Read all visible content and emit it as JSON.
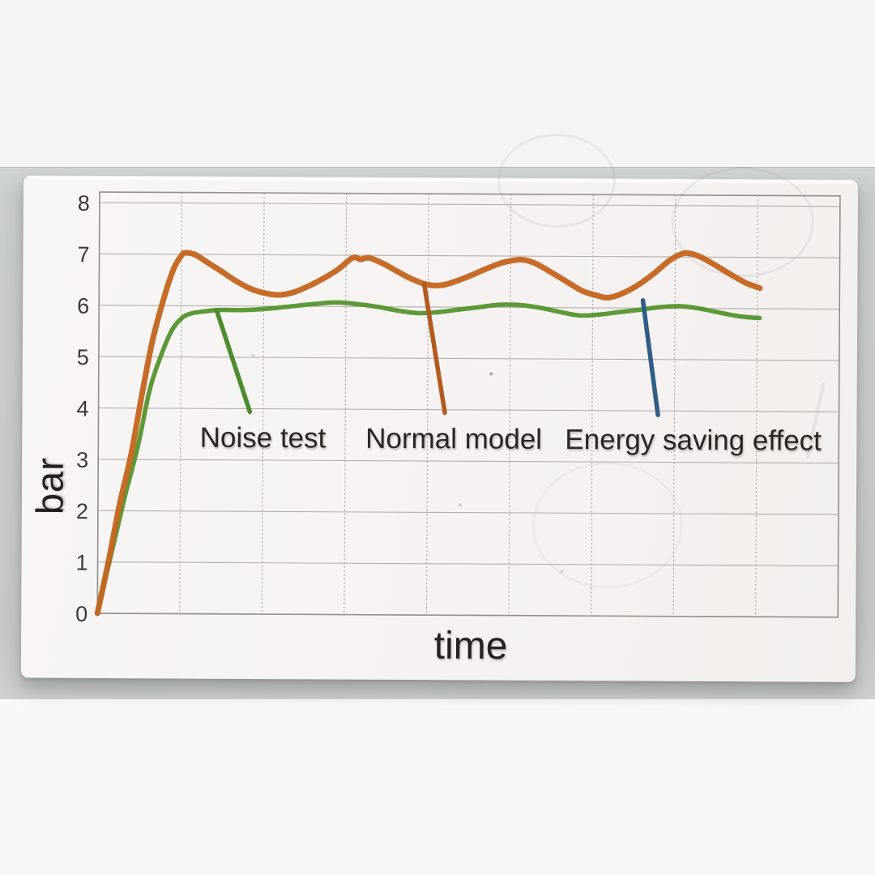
{
  "chart_data": {
    "type": "line",
    "title": "",
    "xlabel": "time",
    "ylabel": "bar",
    "xlim": [
      0,
      9
    ],
    "ylim": [
      0,
      8
    ],
    "yticks": [
      8,
      7,
      6,
      5,
      4,
      3,
      2,
      1,
      0
    ],
    "xticks": [],
    "grid": true,
    "legend_position": "none (curves identified by on-chart annotations with pointer lines)",
    "series": [
      {
        "name": "Normal model",
        "color": "#c4661f",
        "points": [
          [
            0,
            0
          ],
          [
            0.13,
            1.0
          ],
          [
            0.26,
            2.1
          ],
          [
            0.4,
            3.1
          ],
          [
            0.52,
            4.2
          ],
          [
            0.65,
            5.3
          ],
          [
            0.78,
            6.1
          ],
          [
            0.9,
            6.7
          ],
          [
            1.0,
            6.98
          ],
          [
            1.05,
            7.03
          ],
          [
            1.17,
            6.99
          ],
          [
            1.31,
            6.85
          ],
          [
            1.48,
            6.68
          ],
          [
            1.65,
            6.5
          ],
          [
            1.85,
            6.33
          ],
          [
            2.05,
            6.24
          ],
          [
            2.2,
            6.22
          ],
          [
            2.36,
            6.27
          ],
          [
            2.54,
            6.39
          ],
          [
            2.74,
            6.56
          ],
          [
            2.91,
            6.73
          ],
          [
            3.08,
            6.95
          ],
          [
            3.18,
            6.92
          ],
          [
            3.28,
            6.95
          ],
          [
            3.45,
            6.84
          ],
          [
            3.6,
            6.71
          ],
          [
            3.75,
            6.58
          ],
          [
            3.88,
            6.49
          ],
          [
            3.95,
            6.45
          ],
          [
            4.06,
            6.42
          ],
          [
            4.18,
            6.43
          ],
          [
            4.31,
            6.49
          ],
          [
            4.49,
            6.6
          ],
          [
            4.69,
            6.74
          ],
          [
            4.88,
            6.86
          ],
          [
            5.05,
            6.92
          ],
          [
            5.15,
            6.93
          ],
          [
            5.3,
            6.86
          ],
          [
            5.47,
            6.71
          ],
          [
            5.67,
            6.52
          ],
          [
            5.87,
            6.33
          ],
          [
            6.05,
            6.24
          ],
          [
            6.18,
            6.2
          ],
          [
            6.34,
            6.27
          ],
          [
            6.54,
            6.44
          ],
          [
            6.73,
            6.66
          ],
          [
            6.93,
            6.93
          ],
          [
            7.08,
            7.06
          ],
          [
            7.17,
            7.07
          ],
          [
            7.31,
            7.0
          ],
          [
            7.48,
            6.85
          ],
          [
            7.68,
            6.66
          ],
          [
            7.86,
            6.5
          ],
          [
            7.98,
            6.43
          ],
          [
            8.03,
            6.4
          ]
        ]
      },
      {
        "name": "Noise test / Energy saving effect",
        "color": "#55952f",
        "points": [
          [
            0,
            0
          ],
          [
            0.17,
            1.2
          ],
          [
            0.33,
            2.3
          ],
          [
            0.48,
            3.25
          ],
          [
            0.62,
            4.35
          ],
          [
            0.75,
            5.0
          ],
          [
            0.88,
            5.5
          ],
          [
            1.0,
            5.75
          ],
          [
            1.12,
            5.85
          ],
          [
            1.28,
            5.89
          ],
          [
            1.46,
            5.92
          ],
          [
            1.75,
            5.92
          ],
          [
            2.05,
            5.95
          ],
          [
            2.34,
            6.0
          ],
          [
            2.64,
            6.05
          ],
          [
            2.88,
            6.08
          ],
          [
            3.13,
            6.05
          ],
          [
            3.38,
            6.0
          ],
          [
            3.62,
            5.93
          ],
          [
            3.87,
            5.88
          ],
          [
            4.12,
            5.9
          ],
          [
            4.36,
            5.95
          ],
          [
            4.61,
            6.0
          ],
          [
            4.85,
            6.05
          ],
          [
            5.1,
            6.05
          ],
          [
            5.35,
            6.0
          ],
          [
            5.59,
            5.92
          ],
          [
            5.84,
            5.85
          ],
          [
            6.08,
            5.87
          ],
          [
            6.33,
            5.92
          ],
          [
            6.58,
            5.97
          ],
          [
            6.82,
            6.02
          ],
          [
            7.07,
            6.04
          ],
          [
            7.29,
            6.0
          ],
          [
            7.51,
            5.93
          ],
          [
            7.74,
            5.86
          ],
          [
            7.91,
            5.83
          ],
          [
            8.03,
            5.82
          ]
        ]
      }
    ],
    "annotations": [
      {
        "label": "Noise test",
        "pointer_color": "#4d8b2d",
        "pointer": [
          [
            1.43,
            5.91
          ],
          [
            1.84,
            3.94
          ]
        ],
        "label_pos": [
          2.0,
          3.42
        ]
      },
      {
        "label": "Normal model",
        "pointer_color": "#b35a1e",
        "pointer": [
          [
            3.95,
            6.45
          ],
          [
            4.21,
            3.94
          ]
        ],
        "label_pos": [
          4.32,
          3.42
        ]
      },
      {
        "label": "Energy saving effect",
        "pointer_color": "#2e5c84",
        "pointer": [
          [
            6.61,
            6.15
          ],
          [
            6.8,
            3.92
          ]
        ],
        "label_pos": [
          7.23,
          3.42
        ]
      }
    ]
  }
}
